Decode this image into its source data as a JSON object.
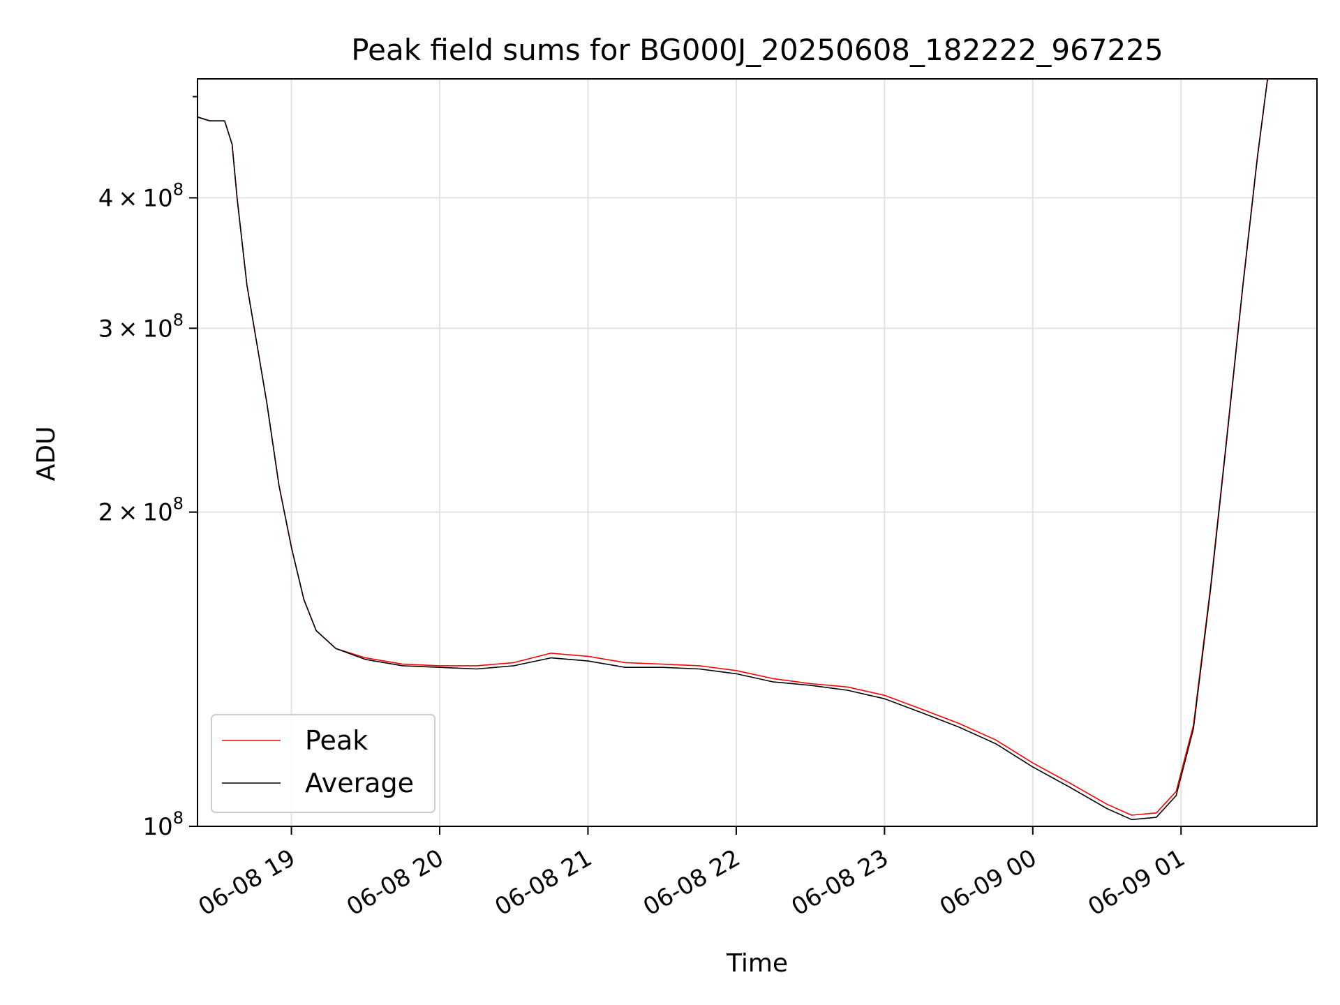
{
  "chart_data": {
    "type": "line",
    "title": "Peak field sums for BG000J_20250608_182222_967225",
    "xlabel": "Time",
    "ylabel": "ADU",
    "yscale": "log",
    "ylim": [
      100000000,
      520000000
    ],
    "xlim": [
      "2025-06-08 18:22",
      "2025-06-09 01:55"
    ],
    "grid": true,
    "legend_position": "lower-left",
    "x_ticks": [
      {
        "time": "2025-06-08 19:00",
        "label": "06-08 19"
      },
      {
        "time": "2025-06-08 20:00",
        "label": "06-08 20"
      },
      {
        "time": "2025-06-08 21:00",
        "label": "06-08 21"
      },
      {
        "time": "2025-06-08 22:00",
        "label": "06-08 22"
      },
      {
        "time": "2025-06-08 23:00",
        "label": "06-08 23"
      },
      {
        "time": "2025-06-09 00:00",
        "label": "06-09 00"
      },
      {
        "time": "2025-06-09 01:00",
        "label": "06-09 01"
      }
    ],
    "y_ticks": [
      {
        "value": 100000000,
        "mantissa": "",
        "exponent": "8",
        "base": "10"
      },
      {
        "value": 200000000,
        "mantissa": "2",
        "exponent": "8",
        "base": "10"
      },
      {
        "value": 300000000,
        "mantissa": "3",
        "exponent": "8",
        "base": "10"
      },
      {
        "value": 400000000,
        "mantissa": "4",
        "exponent": "8",
        "base": "10"
      }
    ],
    "series": [
      {
        "name": "Peak",
        "color": "#ff0000",
        "points": [
          [
            "2025-06-08 18:22",
            478000000
          ],
          [
            "2025-06-08 18:27",
            474000000
          ],
          [
            "2025-06-08 18:33",
            474000000
          ],
          [
            "2025-06-08 18:36",
            450000000
          ],
          [
            "2025-06-08 18:38",
            400000000
          ],
          [
            "2025-06-08 18:42",
            330000000
          ],
          [
            "2025-06-08 18:46",
            290000000
          ],
          [
            "2025-06-08 18:50",
            255000000
          ],
          [
            "2025-06-08 18:55",
            212000000
          ],
          [
            "2025-06-08 19:00",
            185000000
          ],
          [
            "2025-06-08 19:05",
            165000000
          ],
          [
            "2025-06-08 19:10",
            154000000
          ],
          [
            "2025-06-08 19:18",
            148000000
          ],
          [
            "2025-06-08 19:30",
            145000000
          ],
          [
            "2025-06-08 19:45",
            143000000
          ],
          [
            "2025-06-08 20:00",
            142500000
          ],
          [
            "2025-06-08 20:15",
            142500000
          ],
          [
            "2025-06-08 20:30",
            143500000
          ],
          [
            "2025-06-08 20:45",
            146500000
          ],
          [
            "2025-06-08 21:00",
            145500000
          ],
          [
            "2025-06-08 21:15",
            143500000
          ],
          [
            "2025-06-08 21:30",
            143000000
          ],
          [
            "2025-06-08 21:45",
            142500000
          ],
          [
            "2025-06-08 22:00",
            141000000
          ],
          [
            "2025-06-08 22:15",
            138500000
          ],
          [
            "2025-06-08 22:30",
            137000000
          ],
          [
            "2025-06-08 22:45",
            136000000
          ],
          [
            "2025-06-08 23:00",
            133500000
          ],
          [
            "2025-06-08 23:15",
            129500000
          ],
          [
            "2025-06-08 23:30",
            125500000
          ],
          [
            "2025-06-08 23:45",
            121000000
          ],
          [
            "2025-06-09 00:00",
            115000000
          ],
          [
            "2025-06-09 00:15",
            110000000
          ],
          [
            "2025-06-09 00:30",
            105000000
          ],
          [
            "2025-06-09 00:40",
            102500000
          ],
          [
            "2025-06-09 00:50",
            103000000
          ],
          [
            "2025-06-09 00:58",
            108000000
          ],
          [
            "2025-06-09 01:05",
            125000000
          ],
          [
            "2025-06-09 01:12",
            170000000
          ],
          [
            "2025-06-09 01:18",
            230000000
          ],
          [
            "2025-06-09 01:25",
            330000000
          ],
          [
            "2025-06-09 01:31",
            440000000
          ],
          [
            "2025-06-09 01:35",
            520000000
          ]
        ]
      },
      {
        "name": "Average",
        "color": "#000000",
        "points": [
          [
            "2025-06-08 18:22",
            478000000
          ],
          [
            "2025-06-08 18:27",
            474000000
          ],
          [
            "2025-06-08 18:33",
            474000000
          ],
          [
            "2025-06-08 18:36",
            450000000
          ],
          [
            "2025-06-08 18:38",
            400000000
          ],
          [
            "2025-06-08 18:42",
            330000000
          ],
          [
            "2025-06-08 18:46",
            290000000
          ],
          [
            "2025-06-08 18:50",
            255000000
          ],
          [
            "2025-06-08 18:55",
            212000000
          ],
          [
            "2025-06-08 19:00",
            185000000
          ],
          [
            "2025-06-08 19:05",
            165000000
          ],
          [
            "2025-06-08 19:10",
            154000000
          ],
          [
            "2025-06-08 19:18",
            148000000
          ],
          [
            "2025-06-08 19:30",
            144500000
          ],
          [
            "2025-06-08 19:45",
            142500000
          ],
          [
            "2025-06-08 20:00",
            142000000
          ],
          [
            "2025-06-08 20:15",
            141500000
          ],
          [
            "2025-06-08 20:30",
            142500000
          ],
          [
            "2025-06-08 20:45",
            145000000
          ],
          [
            "2025-06-08 21:00",
            144000000
          ],
          [
            "2025-06-08 21:15",
            142000000
          ],
          [
            "2025-06-08 21:30",
            142000000
          ],
          [
            "2025-06-08 21:45",
            141500000
          ],
          [
            "2025-06-08 22:00",
            140000000
          ],
          [
            "2025-06-08 22:15",
            137500000
          ],
          [
            "2025-06-08 22:30",
            136500000
          ],
          [
            "2025-06-08 22:45",
            135000000
          ],
          [
            "2025-06-08 23:00",
            132500000
          ],
          [
            "2025-06-08 23:15",
            128500000
          ],
          [
            "2025-06-08 23:30",
            124500000
          ],
          [
            "2025-06-08 23:45",
            120000000
          ],
          [
            "2025-06-09 00:00",
            114000000
          ],
          [
            "2025-06-09 00:15",
            109000000
          ],
          [
            "2025-06-09 00:30",
            104000000
          ],
          [
            "2025-06-09 00:40",
            101500000
          ],
          [
            "2025-06-09 00:50",
            102000000
          ],
          [
            "2025-06-09 00:58",
            107000000
          ],
          [
            "2025-06-09 01:05",
            124000000
          ],
          [
            "2025-06-09 01:12",
            169000000
          ],
          [
            "2025-06-09 01:18",
            229000000
          ],
          [
            "2025-06-09 01:25",
            329000000
          ],
          [
            "2025-06-09 01:31",
            439000000
          ],
          [
            "2025-06-09 01:35",
            520000000
          ]
        ]
      }
    ]
  }
}
